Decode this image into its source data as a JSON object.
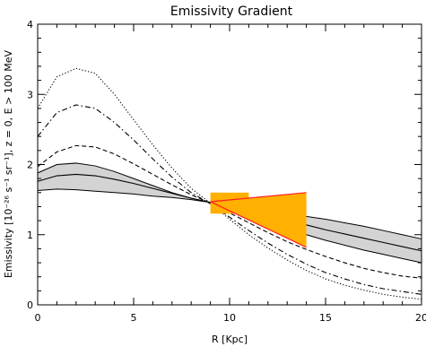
{
  "chart_data": {
    "type": "line",
    "title": "Emissivity Gradient",
    "xlabel": "R [Kpc]",
    "ylabel": "Emissivity [10⁻²⁶ s⁻¹ sr⁻¹], z = 0, E > 100 MeV",
    "xlim": [
      0,
      20
    ],
    "ylim": [
      0,
      4
    ],
    "xticks": [
      0,
      5,
      10,
      15,
      20
    ],
    "yticks": [
      0,
      1,
      2,
      3,
      4
    ],
    "grid": false,
    "band": {
      "x": [
        0,
        1,
        2,
        3,
        4,
        5,
        6,
        7,
        8,
        9,
        10,
        11,
        12,
        13,
        14,
        15,
        16,
        17,
        18,
        19,
        20
      ],
      "upper": [
        1.88,
        2.0,
        2.02,
        1.98,
        1.9,
        1.8,
        1.7,
        1.6,
        1.52,
        1.46,
        1.42,
        1.38,
        1.34,
        1.3,
        1.26,
        1.22,
        1.17,
        1.12,
        1.06,
        1.0,
        0.94
      ],
      "lower": [
        1.63,
        1.65,
        1.64,
        1.62,
        1.6,
        1.58,
        1.55,
        1.53,
        1.5,
        1.46,
        1.38,
        1.28,
        1.18,
        1.08,
        1.0,
        0.92,
        0.85,
        0.78,
        0.72,
        0.66,
        0.6
      ],
      "color": "#d3d3d3"
    },
    "series": [
      {
        "style": "solid",
        "x": [
          0,
          1,
          2,
          3,
          4,
          5,
          6,
          7,
          8,
          9,
          10,
          11,
          12,
          13,
          14,
          15,
          16,
          17,
          18,
          19,
          20
        ],
        "values": [
          1.76,
          1.84,
          1.86,
          1.84,
          1.79,
          1.73,
          1.66,
          1.59,
          1.52,
          1.46,
          1.41,
          1.35,
          1.28,
          1.21,
          1.14,
          1.07,
          1.01,
          0.95,
          0.89,
          0.83,
          0.77
        ]
      },
      {
        "style": "dashed",
        "x": [
          0,
          1,
          2,
          3,
          4,
          5,
          6,
          7,
          8,
          9,
          10,
          11,
          12,
          13,
          14,
          15,
          16,
          17,
          18,
          19,
          20
        ],
        "values": [
          1.97,
          2.18,
          2.27,
          2.25,
          2.15,
          2.01,
          1.86,
          1.71,
          1.57,
          1.45,
          1.31,
          1.17,
          1.03,
          0.9,
          0.79,
          0.69,
          0.6,
          0.52,
          0.46,
          0.41,
          0.38
        ]
      },
      {
        "style": "dashdot",
        "x": [
          0,
          1,
          2,
          3,
          4,
          5,
          6,
          7,
          8,
          9,
          10,
          11,
          12,
          13,
          14,
          15,
          16,
          17,
          18,
          19,
          20
        ],
        "values": [
          2.4,
          2.74,
          2.85,
          2.8,
          2.6,
          2.35,
          2.08,
          1.82,
          1.6,
          1.44,
          1.25,
          1.06,
          0.88,
          0.72,
          0.58,
          0.46,
          0.37,
          0.29,
          0.23,
          0.19,
          0.15
        ]
      },
      {
        "style": "dotted",
        "x": [
          0,
          1,
          2,
          3,
          4,
          5,
          6,
          7,
          8,
          9,
          10,
          11,
          12,
          13,
          14,
          15,
          16,
          17,
          18,
          19,
          20
        ],
        "values": [
          2.8,
          3.25,
          3.37,
          3.3,
          3.0,
          2.64,
          2.28,
          1.95,
          1.66,
          1.45,
          1.22,
          1.0,
          0.81,
          0.64,
          0.49,
          0.37,
          0.28,
          0.21,
          0.15,
          0.11,
          0.08
        ]
      }
    ],
    "constraint_region": {
      "fill": "#ffb000",
      "stroke": "#ff2020",
      "rect": {
        "x0": 9.0,
        "x1": 11.0,
        "y0": 1.3,
        "y1": 1.6
      },
      "upper_edge": [
        [
          9.0,
          1.47
        ],
        [
          14.0,
          1.6
        ]
      ],
      "lower_edge": [
        [
          9.0,
          1.47
        ],
        [
          14.0,
          0.82
        ]
      ],
      "right_x": 14.0
    }
  }
}
